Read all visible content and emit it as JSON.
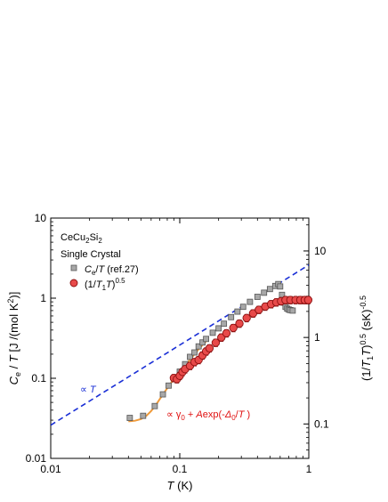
{
  "chart_data": {
    "type": "scatter",
    "x_scale": "log",
    "y_scale": "log",
    "xlim": [
      0.01,
      1
    ],
    "ylim": [
      0.01,
      10
    ],
    "y2lim": [
      0.04,
      24
    ],
    "x_ticks": [
      {
        "value": 0.01,
        "label": "0.01"
      },
      {
        "value": 0.1,
        "label": "0.1"
      },
      {
        "value": 1,
        "label": "1"
      }
    ],
    "y_ticks": [
      {
        "value": 0.01,
        "label": "0.01"
      },
      {
        "value": 0.1,
        "label": "0.1"
      },
      {
        "value": 1,
        "label": "1"
      },
      {
        "value": 10,
        "label": "10"
      }
    ],
    "y2_ticks": [
      {
        "value": 0.1,
        "label": "0.1"
      },
      {
        "value": 1,
        "label": "1"
      },
      {
        "value": 10,
        "label": "10"
      }
    ],
    "xlabel": {
      "main": "T",
      "unit": " (K)"
    },
    "ylabel": {
      "a": "C",
      "a_sub": "e",
      "b": " / ",
      "c": "T",
      "d": " [J /(mol K",
      "d_sup": "2",
      "e": ")]"
    },
    "y2label": {
      "a": "(1/",
      "b": "T",
      "b_sub": "1",
      "c": "T",
      "d": ")",
      "d_sup": "0.5",
      "e": " (sK)",
      "e_sup": "-0.5"
    },
    "annotation_title": {
      "a": "CeCu",
      "a_sub": "2",
      "b": "Si",
      "b_sub": "2"
    },
    "annotation_subtitle": "Single Crystal",
    "legend": {
      "square": {
        "a": "C",
        "a_sub": "e",
        "b": "/",
        "c": "T",
        "d": " (ref.27)"
      },
      "circle": {
        "a": "(1/",
        "b": "T",
        "b_sub": "1",
        "c": "T",
        "d": ")",
        "d_sup": "0.5"
      }
    },
    "annotation_line": {
      "prefix": "∝ ",
      "t": "T"
    },
    "annotation_fit": {
      "prefix": "∝ γ",
      "sub": "0",
      "mid": " + ",
      "a": "A",
      "exp": "exp(-",
      "delta": "Δ",
      "delta_sub": "0",
      "slash": "/",
      "t": "T",
      "close": " )"
    },
    "colors": {
      "circle_fill": "#e84a4a",
      "circle_edge": "#8b1010",
      "square_fill": "#a8a8a8",
      "square_edge": "#555555",
      "fit": "#ef9a3a",
      "dashed": "#1a2fd6",
      "annotation_red": "#e01010",
      "annotation_blue": "#1a2fd6"
    },
    "series": [
      {
        "id": "ce_over_t",
        "marker": "square",
        "axis": "left",
        "points": [
          [
            0.041,
            0.032
          ],
          [
            0.052,
            0.034
          ],
          [
            0.064,
            0.045
          ],
          [
            0.074,
            0.063
          ],
          [
            0.082,
            0.081
          ],
          [
            0.09,
            0.1
          ],
          [
            0.1,
            0.121
          ],
          [
            0.11,
            0.15
          ],
          [
            0.12,
            0.185
          ],
          [
            0.13,
            0.21
          ],
          [
            0.14,
            0.25
          ],
          [
            0.15,
            0.28
          ],
          [
            0.16,
            0.31
          ],
          [
            0.18,
            0.37
          ],
          [
            0.2,
            0.42
          ],
          [
            0.22,
            0.48
          ],
          [
            0.25,
            0.58
          ],
          [
            0.28,
            0.68
          ],
          [
            0.31,
            0.78
          ],
          [
            0.35,
            0.9
          ],
          [
            0.4,
            1.04
          ],
          [
            0.45,
            1.17
          ],
          [
            0.5,
            1.3
          ],
          [
            0.55,
            1.42
          ],
          [
            0.58,
            1.5
          ],
          [
            0.6,
            1.4
          ],
          [
            0.62,
            1.1
          ],
          [
            0.64,
            0.88
          ],
          [
            0.66,
            0.78
          ],
          [
            0.68,
            0.74
          ],
          [
            0.7,
            0.72
          ],
          [
            0.72,
            0.71
          ],
          [
            0.75,
            0.7
          ]
        ]
      },
      {
        "id": "nmr",
        "marker": "circle",
        "axis": "right",
        "points": [
          [
            0.09,
            0.34
          ],
          [
            0.095,
            0.33
          ],
          [
            0.1,
            0.36
          ],
          [
            0.105,
            0.4
          ],
          [
            0.11,
            0.43
          ],
          [
            0.12,
            0.47
          ],
          [
            0.13,
            0.52
          ],
          [
            0.14,
            0.55
          ],
          [
            0.15,
            0.62
          ],
          [
            0.16,
            0.69
          ],
          [
            0.17,
            0.75
          ],
          [
            0.19,
            0.87
          ],
          [
            0.21,
            1.0
          ],
          [
            0.23,
            1.12
          ],
          [
            0.26,
            1.29
          ],
          [
            0.29,
            1.45
          ],
          [
            0.33,
            1.68
          ],
          [
            0.37,
            1.9
          ],
          [
            0.41,
            2.09
          ],
          [
            0.46,
            2.28
          ],
          [
            0.51,
            2.43
          ],
          [
            0.56,
            2.55
          ],
          [
            0.61,
            2.63
          ],
          [
            0.66,
            2.71
          ],
          [
            0.72,
            2.71
          ],
          [
            0.79,
            2.71
          ],
          [
            0.86,
            2.71
          ],
          [
            0.93,
            2.71
          ],
          [
            0.99,
            2.71
          ]
        ],
        "error_frac": 0.1
      }
    ],
    "fit_curve": {
      "id": "fit",
      "axis": "left",
      "points": [
        [
          0.04,
          0.029
        ],
        [
          0.045,
          0.0295
        ],
        [
          0.05,
          0.031
        ],
        [
          0.055,
          0.034
        ],
        [
          0.06,
          0.039
        ],
        [
          0.065,
          0.046
        ],
        [
          0.07,
          0.055
        ],
        [
          0.08,
          0.075
        ],
        [
          0.09,
          0.098
        ],
        [
          0.1,
          0.12
        ],
        [
          0.11,
          0.145
        ],
        [
          0.12,
          0.17
        ],
        [
          0.13,
          0.2
        ],
        [
          0.14,
          0.23
        ],
        [
          0.15,
          0.26
        ],
        [
          0.16,
          0.29
        ]
      ]
    },
    "power_law": {
      "id": "dashed",
      "axis": "left",
      "x": [
        0.01,
        1
      ],
      "y": [
        0.026,
        2.6
      ]
    }
  }
}
